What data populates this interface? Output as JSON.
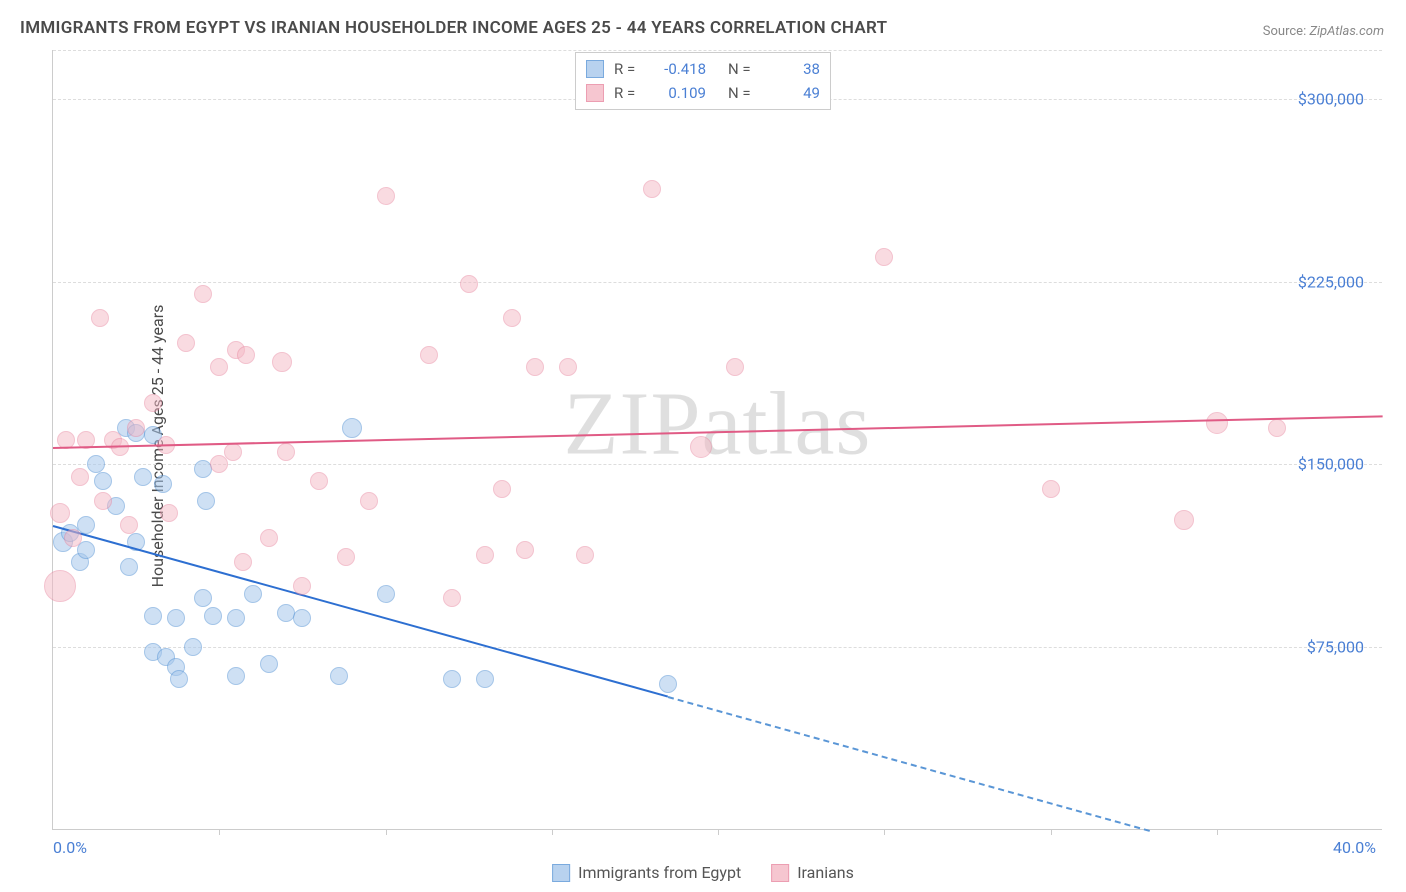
{
  "title": "IMMIGRANTS FROM EGYPT VS IRANIAN HOUSEHOLDER INCOME AGES 25 - 44 YEARS CORRELATION CHART",
  "source_label": "Source:",
  "source_value": "ZipAtlas.com",
  "watermark": "ZIPatlas",
  "y_axis_title": "Householder Income Ages 25 - 44 years",
  "chart": {
    "type": "scatter",
    "background_color": "#ffffff",
    "grid_color": "#dddddd",
    "axis_color": "#cccccc",
    "tick_label_color": "#4a7fd4",
    "xlim": [
      0,
      40
    ],
    "ylim": [
      0,
      320000
    ],
    "x_ticks_minor_pct": [
      5,
      10,
      15,
      20,
      25,
      30,
      35
    ],
    "x_tick_labels": [
      {
        "x": 0,
        "text": "0.0%"
      },
      {
        "x": 40,
        "text": "40.0%"
      }
    ],
    "y_gridlines": [
      75000,
      150000,
      225000,
      300000,
      320000
    ],
    "y_tick_labels": [
      {
        "y": 75000,
        "text": "$75,000"
      },
      {
        "y": 150000,
        "text": "$150,000"
      },
      {
        "y": 225000,
        "text": "$225,000"
      },
      {
        "y": 300000,
        "text": "$300,000"
      }
    ],
    "series": [
      {
        "name": "Immigrants from Egypt",
        "fill_color": "#a7c8ec",
        "stroke_color": "#5a96d6",
        "fill_opacity": 0.55,
        "marker_radius": 9,
        "R": "-0.418",
        "N": "38",
        "trend": {
          "x1": 0,
          "y1": 125000,
          "x2": 18.5,
          "y2": 55000,
          "color": "#2d6fd1"
        },
        "trend_dashed": {
          "x1": 18.5,
          "y1": 55000,
          "x2": 33,
          "y2": 0,
          "color": "#5a96d6"
        },
        "points": [
          {
            "x": 0.3,
            "y": 118000,
            "r": 10
          },
          {
            "x": 0.5,
            "y": 122000,
            "r": 9
          },
          {
            "x": 0.8,
            "y": 110000,
            "r": 9
          },
          {
            "x": 1.0,
            "y": 125000,
            "r": 9
          },
          {
            "x": 1.0,
            "y": 115000,
            "r": 9
          },
          {
            "x": 1.3,
            "y": 150000,
            "r": 9
          },
          {
            "x": 1.5,
            "y": 143000,
            "r": 9
          },
          {
            "x": 1.9,
            "y": 133000,
            "r": 9
          },
          {
            "x": 2.2,
            "y": 165000,
            "r": 9
          },
          {
            "x": 2.5,
            "y": 163000,
            "r": 9
          },
          {
            "x": 2.5,
            "y": 118000,
            "r": 9
          },
          {
            "x": 2.3,
            "y": 108000,
            "r": 9
          },
          {
            "x": 2.7,
            "y": 145000,
            "r": 9
          },
          {
            "x": 3.0,
            "y": 162000,
            "r": 9
          },
          {
            "x": 3.0,
            "y": 73000,
            "r": 9
          },
          {
            "x": 3.0,
            "y": 88000,
            "r": 9
          },
          {
            "x": 3.4,
            "y": 71000,
            "r": 9
          },
          {
            "x": 3.3,
            "y": 142000,
            "r": 9
          },
          {
            "x": 3.7,
            "y": 87000,
            "r": 9
          },
          {
            "x": 3.7,
            "y": 67000,
            "r": 9
          },
          {
            "x": 3.8,
            "y": 62000,
            "r": 9
          },
          {
            "x": 4.2,
            "y": 75000,
            "r": 9
          },
          {
            "x": 4.5,
            "y": 148000,
            "r": 9
          },
          {
            "x": 4.5,
            "y": 95000,
            "r": 9
          },
          {
            "x": 4.8,
            "y": 88000,
            "r": 9
          },
          {
            "x": 4.6,
            "y": 135000,
            "r": 9
          },
          {
            "x": 5.5,
            "y": 63000,
            "r": 9
          },
          {
            "x": 5.5,
            "y": 87000,
            "r": 9
          },
          {
            "x": 6.0,
            "y": 97000,
            "r": 9
          },
          {
            "x": 6.5,
            "y": 68000,
            "r": 9
          },
          {
            "x": 7.0,
            "y": 89000,
            "r": 9
          },
          {
            "x": 7.5,
            "y": 87000,
            "r": 9
          },
          {
            "x": 8.6,
            "y": 63000,
            "r": 9
          },
          {
            "x": 9.0,
            "y": 165000,
            "r": 10
          },
          {
            "x": 10.0,
            "y": 97000,
            "r": 9
          },
          {
            "x": 12.0,
            "y": 62000,
            "r": 9
          },
          {
            "x": 13.0,
            "y": 62000,
            "r": 9
          },
          {
            "x": 18.5,
            "y": 60000,
            "r": 9
          }
        ]
      },
      {
        "name": "Iranians",
        "fill_color": "#f4b8c5",
        "stroke_color": "#e8869f",
        "fill_opacity": 0.5,
        "marker_radius": 9,
        "R": "0.109",
        "N": "49",
        "trend": {
          "x1": 0,
          "y1": 157000,
          "x2": 40,
          "y2": 170000,
          "color": "#e05b85"
        },
        "points": [
          {
            "x": 0.2,
            "y": 100000,
            "r": 16
          },
          {
            "x": 0.2,
            "y": 130000,
            "r": 10
          },
          {
            "x": 0.4,
            "y": 160000,
            "r": 9
          },
          {
            "x": 0.6,
            "y": 120000,
            "r": 9
          },
          {
            "x": 0.8,
            "y": 145000,
            "r": 9
          },
          {
            "x": 1.0,
            "y": 160000,
            "r": 9
          },
          {
            "x": 1.4,
            "y": 210000,
            "r": 9
          },
          {
            "x": 1.5,
            "y": 135000,
            "r": 9
          },
          {
            "x": 1.8,
            "y": 160000,
            "r": 9
          },
          {
            "x": 2.0,
            "y": 157000,
            "r": 9
          },
          {
            "x": 2.3,
            "y": 125000,
            "r": 9
          },
          {
            "x": 2.5,
            "y": 165000,
            "r": 9
          },
          {
            "x": 3.0,
            "y": 175000,
            "r": 9
          },
          {
            "x": 3.4,
            "y": 158000,
            "r": 9
          },
          {
            "x": 3.5,
            "y": 130000,
            "r": 9
          },
          {
            "x": 4.0,
            "y": 200000,
            "r": 9
          },
          {
            "x": 4.5,
            "y": 220000,
            "r": 9
          },
          {
            "x": 5.0,
            "y": 150000,
            "r": 9
          },
          {
            "x": 5.0,
            "y": 190000,
            "r": 9
          },
          {
            "x": 5.4,
            "y": 155000,
            "r": 9
          },
          {
            "x": 5.5,
            "y": 197000,
            "r": 9
          },
          {
            "x": 5.7,
            "y": 110000,
            "r": 9
          },
          {
            "x": 5.8,
            "y": 195000,
            "r": 9
          },
          {
            "x": 6.9,
            "y": 192000,
            "r": 10
          },
          {
            "x": 6.5,
            "y": 120000,
            "r": 9
          },
          {
            "x": 7.0,
            "y": 155000,
            "r": 9
          },
          {
            "x": 7.5,
            "y": 100000,
            "r": 9
          },
          {
            "x": 8.0,
            "y": 143000,
            "r": 9
          },
          {
            "x": 8.8,
            "y": 112000,
            "r": 9
          },
          {
            "x": 9.5,
            "y": 135000,
            "r": 9
          },
          {
            "x": 10.0,
            "y": 260000,
            "r": 9
          },
          {
            "x": 11.3,
            "y": 195000,
            "r": 9
          },
          {
            "x": 12.0,
            "y": 95000,
            "r": 9
          },
          {
            "x": 12.5,
            "y": 224000,
            "r": 9
          },
          {
            "x": 13.0,
            "y": 113000,
            "r": 9
          },
          {
            "x": 13.5,
            "y": 140000,
            "r": 9
          },
          {
            "x": 13.8,
            "y": 210000,
            "r": 9
          },
          {
            "x": 14.2,
            "y": 115000,
            "r": 9
          },
          {
            "x": 14.5,
            "y": 190000,
            "r": 9
          },
          {
            "x": 15.5,
            "y": 190000,
            "r": 9
          },
          {
            "x": 16,
            "y": 113000,
            "r": 9
          },
          {
            "x": 18,
            "y": 263000,
            "r": 9
          },
          {
            "x": 19.5,
            "y": 157000,
            "r": 11
          },
          {
            "x": 20.5,
            "y": 190000,
            "r": 9
          },
          {
            "x": 25,
            "y": 235000,
            "r": 9
          },
          {
            "x": 30,
            "y": 140000,
            "r": 9
          },
          {
            "x": 34,
            "y": 127000,
            "r": 10
          },
          {
            "x": 35,
            "y": 167000,
            "r": 11
          },
          {
            "x": 36.8,
            "y": 165000,
            "r": 9
          }
        ]
      }
    ],
    "legend_bottom": [
      {
        "label": "Immigrants from Egypt",
        "fill": "#a7c8ec",
        "stroke": "#5a96d6"
      },
      {
        "label": "Iranians",
        "fill": "#f4b8c5",
        "stroke": "#e8869f"
      }
    ]
  }
}
